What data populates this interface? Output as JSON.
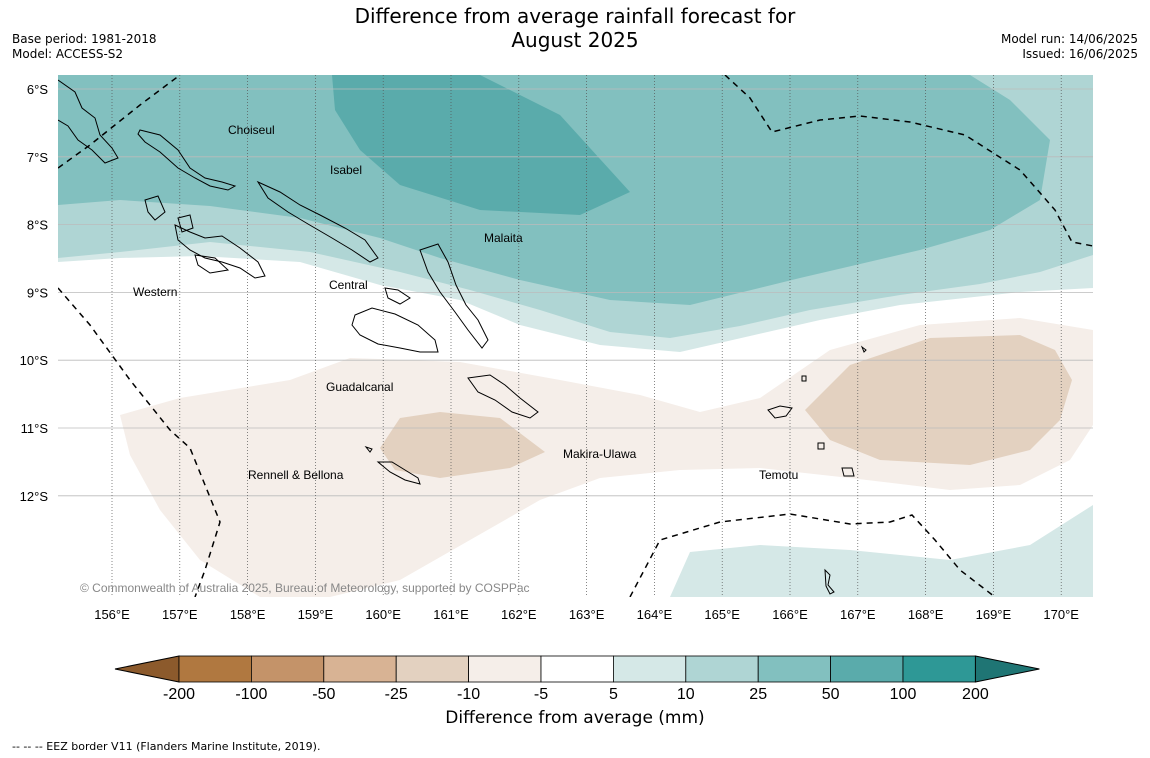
{
  "header": {
    "title_line1": "Difference from average rainfall forecast for",
    "title_line2": "August 2025",
    "base_period": "Base period: 1981-2018",
    "model": "Model: ACCESS-S2",
    "model_run": "Model run: 14/06/2025",
    "issued": "Issued: 16/06/2025"
  },
  "map": {
    "lat_labels": [
      "6°S",
      "7°S",
      "8°S",
      "9°S",
      "10°S",
      "11°S",
      "12°S"
    ],
    "lon_labels": [
      "156°E",
      "157°E",
      "158°E",
      "159°E",
      "160°E",
      "161°E",
      "162°E",
      "163°E",
      "164°E",
      "165°E",
      "166°E",
      "167°E",
      "168°E",
      "169°E",
      "170°E"
    ],
    "regions": [
      "Choiseul",
      "Isabel",
      "Malaita",
      "Western",
      "Central",
      "Guadalcanal",
      "Makira-Ulawa",
      "Rennell & Bellona",
      "Temotu"
    ],
    "copyright": "© Commonwealth of Australia 2025, Bureau of Meteorology, supported by COSPPac"
  },
  "colorbar": {
    "ticks": [
      "-200",
      "-100",
      "-50",
      "-25",
      "-10",
      "-5",
      "5",
      "10",
      "25",
      "50",
      "100",
      "200"
    ],
    "colors": [
      "#8c5a2c",
      "#b07840",
      "#c49369",
      "#d8b394",
      "#e3d1c0",
      "#f5eee9",
      "#ffffff",
      "#d5e8e7",
      "#afd5d4",
      "#82c0bf",
      "#5aabab",
      "#2e9896",
      "#1f7574"
    ],
    "label": "Difference from average (mm)"
  },
  "footnote": "--  --  -- EEZ border V11 (Flanders Marine Institute, 2019)."
}
